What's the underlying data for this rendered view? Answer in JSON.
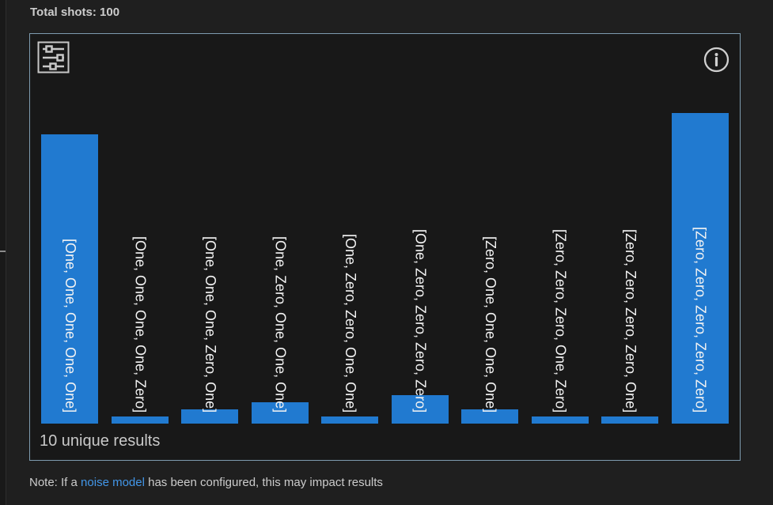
{
  "header": {
    "total_shots": "Total shots: 100"
  },
  "chart": {
    "unique_results_label": "10 unique results"
  },
  "note": {
    "prefix": "Note: If a ",
    "link_text": "noise model",
    "suffix": " has been configured, this may impact results"
  },
  "colors": {
    "bar": "#217ad0",
    "chart_border": "#7e9cb0",
    "link": "#4296e8",
    "panel_background": "#1f1f1f",
    "chart_background": "#181818",
    "text": "#cccccc",
    "bar_label_text": "#f3f3f3"
  },
  "chart_data": {
    "type": "bar",
    "title": "Total shots: 100",
    "total_shots": 100,
    "unique_results": 10,
    "categories": [
      "[One, One, One, One, One]",
      "[One, One, One, One, Zero]",
      "[One, One, One, Zero, One]",
      "[One, Zero, One, One, One]",
      "[One, Zero, Zero, One, One]",
      "[One, Zero, Zero, Zero, Zero]",
      "[Zero, One, One, One, One]",
      "[Zero, Zero, Zero, One, Zero]",
      "[Zero, Zero, Zero, Zero, One]",
      "[Zero, Zero, Zero, Zero, Zero]"
    ],
    "values": [
      41,
      1,
      2,
      3,
      1,
      4,
      2,
      1,
      1,
      44
    ],
    "values_estimated_from_bar_heights": true,
    "xlabel": "",
    "ylabel": "",
    "ylim": [
      0,
      44
    ],
    "grid": false,
    "legend": false,
    "bar_label_style": "rotated-90-bottom-anchored"
  }
}
